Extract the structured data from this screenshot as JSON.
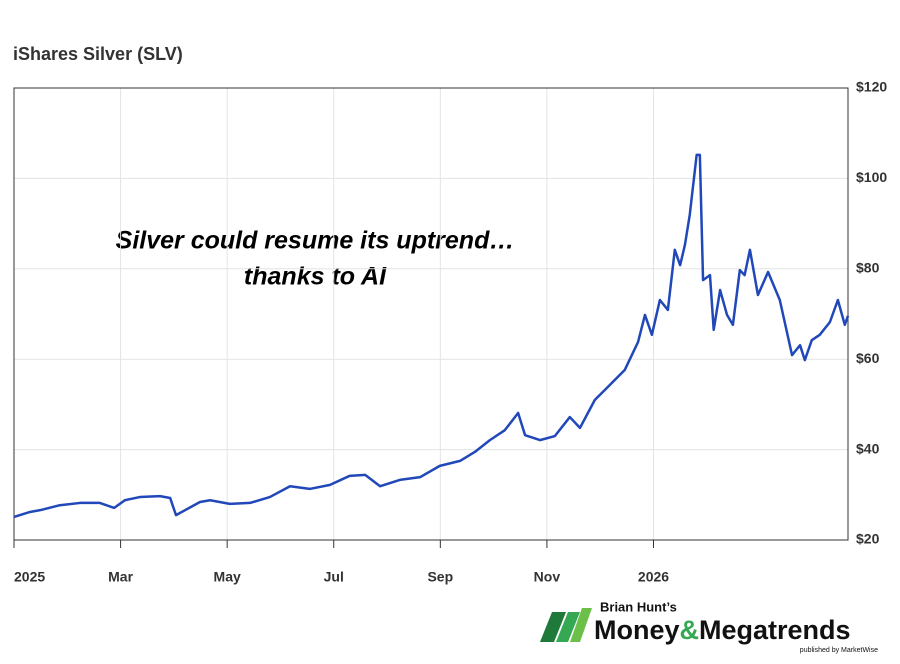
{
  "chart_data": {
    "type": "line",
    "title": "iShares Silver (SLV)",
    "annotation": [
      "Silver could resume its uptrend…",
      "thanks to AI"
    ],
    "x": [
      0,
      0.3,
      0.49,
      0.86,
      1.24,
      1.61,
      1.88,
      2.08,
      2.36,
      2.74,
      2.93,
      3.04,
      3.21,
      3.49,
      3.68,
      4.05,
      4.43,
      4.8,
      5.18,
      5.55,
      5.93,
      6.3,
      6.59,
      6.87,
      7.24,
      7.62,
      7.99,
      8.37,
      8.65,
      8.93,
      9.21,
      9.46,
      9.59,
      9.87,
      10.15,
      10.43,
      10.62,
      10.9,
      11.18,
      11.46,
      11.71,
      11.84,
      11.97,
      12.12,
      12.27,
      12.4,
      12.5,
      12.59,
      12.68,
      12.81,
      12.87,
      12.93,
      13.06,
      13.13,
      13.25,
      13.38,
      13.49,
      13.62,
      13.71,
      13.81,
      13.96,
      14.15,
      14.37,
      14.6,
      14.75,
      14.84,
      14.97,
      15.12,
      15.31,
      15.46,
      15.59,
      15.65
    ],
    "series": [
      {
        "name": "SLV",
        "color": "#2148b8",
        "values": [
          25.1,
          26.2,
          26.6,
          27.7,
          28.2,
          28.2,
          27.1,
          28.8,
          29.5,
          29.7,
          29.3,
          25.5,
          26.6,
          28.4,
          28.8,
          28.0,
          28.2,
          29.5,
          31.9,
          31.3,
          32.2,
          34.2,
          34.4,
          31.9,
          33.3,
          33.9,
          36.4,
          37.5,
          39.5,
          42.1,
          44.3,
          48.1,
          43.2,
          42.1,
          43.0,
          47.2,
          44.8,
          51.0,
          54.3,
          57.6,
          63.8,
          69.8,
          65.4,
          73.1,
          70.9,
          84.2,
          80.8,
          85.3,
          91.9,
          105.2,
          105.2,
          77.5,
          78.6,
          66.5,
          75.3,
          69.8,
          67.6,
          79.7,
          78.6,
          84.2,
          74.2,
          79.3,
          73.1,
          60.9,
          63.1,
          59.8,
          64.2,
          65.4,
          68.2,
          73.1,
          67.6,
          69.6
        ]
      }
    ],
    "xlim": [
      0,
      15.65
    ],
    "xticks": [
      {
        "value": 0,
        "label": "2025"
      },
      {
        "value": 2,
        "label": "Mar"
      },
      {
        "value": 4,
        "label": "May"
      },
      {
        "value": 6,
        "label": "Jul"
      },
      {
        "value": 8,
        "label": "Sep"
      },
      {
        "value": 10,
        "label": "Nov"
      },
      {
        "value": 12,
        "label": "2026"
      }
    ],
    "ylim": [
      20,
      120
    ],
    "yticks": [
      {
        "value": 20,
        "label": "$20"
      },
      {
        "value": 40,
        "label": "$40"
      },
      {
        "value": 60,
        "label": "$60"
      },
      {
        "value": 80,
        "label": "$80"
      },
      {
        "value": 100,
        "label": "$100"
      },
      {
        "value": 120,
        "label": "$120"
      }
    ],
    "grid": true
  },
  "logo": {
    "byline": "Brian Hunt’s",
    "name_start": "Money",
    "ampersand": "&",
    "name_end": "Megatrends",
    "publisher": "published by MarketWise"
  }
}
